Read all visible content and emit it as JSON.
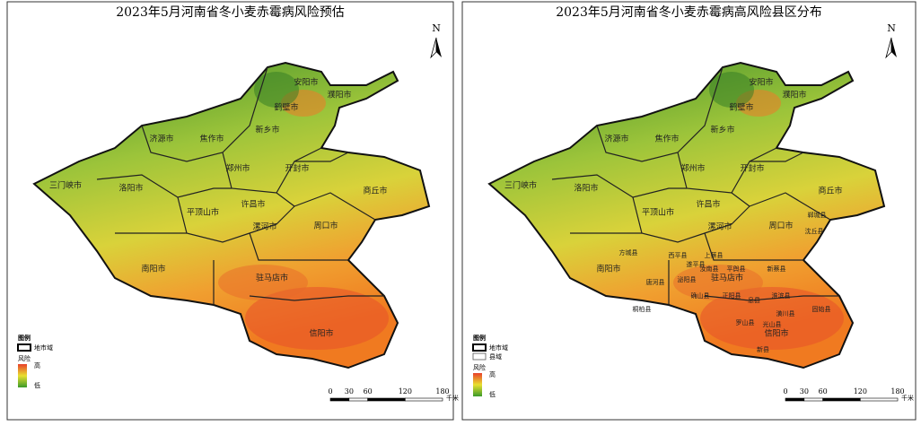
{
  "left_panel": {
    "title": "2023年5月河南省冬小麦赤霉病风险预估",
    "north": "N",
    "cities": [
      "安阳市",
      "濮阳市",
      "鹤壁市",
      "新乡市",
      "济源市",
      "焦作市",
      "郑州市",
      "开封市",
      "商丘市",
      "三门峡市",
      "洛阳市",
      "平顶山市",
      "许昌市",
      "漯河市",
      "周口市",
      "南阳市",
      "驻马店市",
      "信阳市"
    ],
    "legend": {
      "title": "图例",
      "boundary": "地市域",
      "risk": "风险",
      "high": "高",
      "low": "低"
    },
    "scale": {
      "ticks": [
        0,
        30,
        60,
        120,
        180
      ],
      "unit": "千米"
    }
  },
  "right_panel": {
    "title": "2023年5月河南省冬小麦赤霉病高风险县区分布",
    "north": "N",
    "cities": [
      "安阳市",
      "濮阳市",
      "鹤壁市",
      "新乡市",
      "济源市",
      "焦作市",
      "郑州市",
      "开封市",
      "商丘市",
      "三门峡市",
      "洛阳市",
      "平顶山市",
      "许昌市",
      "漯河市",
      "周口市",
      "南阳市",
      "驻马店市",
      "信阳市"
    ],
    "counties": [
      "方城县",
      "唐河县",
      "桐柏县",
      "泌阳县",
      "确山县",
      "正阳县",
      "息县",
      "淮滨县",
      "固始县",
      "潢川县",
      "光山县",
      "罗山县",
      "新县",
      "平舆县",
      "新蔡县",
      "汝南县",
      "上蔡县",
      "西平县",
      "遂平县",
      "郸城县",
      "沈丘县"
    ],
    "legend": {
      "title": "图例",
      "boundary": "地市域",
      "county": "县域",
      "risk": "风险",
      "high": "高",
      "low": "低"
    },
    "scale": {
      "ticks": [
        0,
        30,
        60,
        120,
        180
      ],
      "unit": "千米"
    }
  }
}
